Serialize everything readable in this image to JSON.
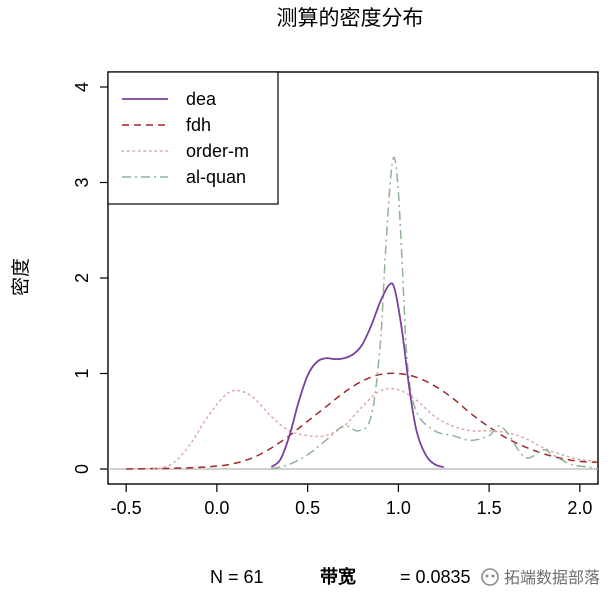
{
  "chart_data": {
    "type": "line",
    "title": "测算的密度分布",
    "xlabel": "",
    "ylabel": "密度",
    "xlim": [
      -0.6,
      2.1
    ],
    "ylim": [
      0,
      4
    ],
    "x_ticks": [
      "-0.5",
      "0.0",
      "0.5",
      "1.0",
      "1.5",
      "2.0"
    ],
    "y_ticks": [
      "0",
      "1",
      "2",
      "3",
      "4"
    ],
    "grid": false,
    "legend_position": "top-left",
    "footer": {
      "n_label": "N = 61",
      "bw_label": "带宽",
      "bw_value": "= 0.0835"
    },
    "watermark": "拓端数据部落",
    "series": [
      {
        "name": "dea",
        "style": "solid",
        "color": "#7b3f9e",
        "x": [
          0.3,
          0.35,
          0.4,
          0.45,
          0.5,
          0.55,
          0.6,
          0.65,
          0.7,
          0.75,
          0.8,
          0.85,
          0.9,
          0.95,
          0.98,
          1.02,
          1.06,
          1.1,
          1.15,
          1.2,
          1.25
        ],
        "y": [
          0.02,
          0.1,
          0.35,
          0.7,
          0.98,
          1.12,
          1.16,
          1.15,
          1.16,
          1.2,
          1.3,
          1.5,
          1.75,
          1.93,
          1.88,
          1.45,
          0.85,
          0.4,
          0.15,
          0.05,
          0.02
        ]
      },
      {
        "name": "fdh",
        "style": "dashed",
        "color": "#a0282d",
        "x": [
          -0.5,
          -0.2,
          0.0,
          0.1,
          0.2,
          0.3,
          0.4,
          0.5,
          0.6,
          0.7,
          0.8,
          0.9,
          1.0,
          1.1,
          1.2,
          1.3,
          1.4,
          1.5,
          1.6,
          1.7,
          1.8,
          1.9,
          2.0,
          2.1
        ],
        "y": [
          0.0,
          0.01,
          0.03,
          0.06,
          0.12,
          0.22,
          0.35,
          0.5,
          0.65,
          0.8,
          0.92,
          0.99,
          1.0,
          0.96,
          0.87,
          0.74,
          0.58,
          0.44,
          0.32,
          0.23,
          0.16,
          0.11,
          0.08,
          0.07
        ]
      },
      {
        "name": "order-m",
        "style": "dotted",
        "color": "#e0a6a6",
        "x": [
          -0.35,
          -0.25,
          -0.15,
          -0.05,
          0.05,
          0.12,
          0.2,
          0.3,
          0.4,
          0.5,
          0.6,
          0.7,
          0.8,
          0.9,
          1.0,
          1.1,
          1.2,
          1.3,
          1.4,
          1.5,
          1.6,
          1.7,
          1.8,
          1.9,
          2.0,
          2.1
        ],
        "y": [
          0.0,
          0.05,
          0.25,
          0.55,
          0.78,
          0.82,
          0.75,
          0.55,
          0.4,
          0.35,
          0.35,
          0.45,
          0.65,
          0.82,
          0.83,
          0.72,
          0.55,
          0.45,
          0.4,
          0.4,
          0.38,
          0.32,
          0.22,
          0.15,
          0.1,
          0.08
        ]
      },
      {
        "name": "al-quan",
        "style": "dashdot",
        "color": "#8fb394",
        "x": [
          0.3,
          0.4,
          0.5,
          0.6,
          0.7,
          0.78,
          0.85,
          0.9,
          0.93,
          0.96,
          0.98,
          1.0,
          1.02,
          1.05,
          1.1,
          1.2,
          1.3,
          1.4,
          1.5,
          1.55,
          1.6,
          1.7,
          1.8,
          1.85,
          1.95,
          2.05,
          2.1
        ],
        "y": [
          0.0,
          0.05,
          0.15,
          0.3,
          0.45,
          0.4,
          0.55,
          1.3,
          2.3,
          3.1,
          3.25,
          2.9,
          2.2,
          1.1,
          0.6,
          0.4,
          0.35,
          0.3,
          0.35,
          0.45,
          0.38,
          0.12,
          0.2,
          0.15,
          0.05,
          0.02,
          0.0
        ]
      }
    ]
  }
}
